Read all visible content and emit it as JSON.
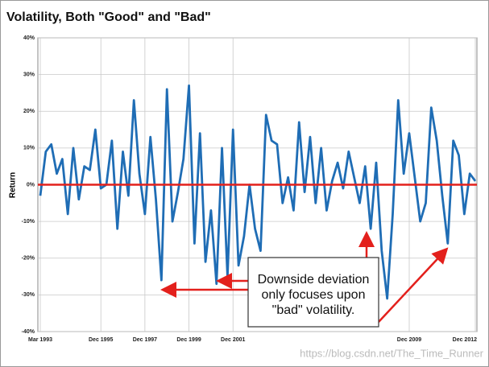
{
  "chart_data": {
    "type": "line",
    "title": "Volatility, Both \"Good\" and \"Bad\"",
    "y_label": "Return",
    "categories": [
      "Mar 1993",
      null,
      null,
      null,
      null,
      null,
      null,
      null,
      null,
      null,
      null,
      "Dec 1995",
      null,
      null,
      null,
      null,
      null,
      null,
      null,
      "Dec 1997",
      null,
      null,
      null,
      null,
      null,
      null,
      null,
      "Dec 1999",
      null,
      null,
      null,
      null,
      null,
      null,
      null,
      "Dec 2001",
      null,
      null,
      null,
      null,
      null,
      null,
      null,
      null,
      null,
      null,
      null,
      null,
      null,
      null,
      null,
      null,
      null,
      null,
      null,
      null,
      null,
      null,
      null,
      null,
      null,
      null,
      null,
      null,
      null,
      null,
      null,
      "Dec 2009",
      null,
      null,
      null,
      null,
      null,
      null,
      null,
      null,
      null,
      null,
      null,
      "Dec 2012"
    ],
    "series": [
      {
        "name": "Return",
        "color": "#1f6db5",
        "values": [
          -3,
          9,
          11,
          3,
          7,
          -8,
          10,
          -4,
          5,
          4,
          15,
          -1,
          0,
          12,
          -12,
          9,
          -3,
          23,
          3,
          -8,
          13,
          -4,
          -26,
          26,
          -10,
          -2,
          7,
          27,
          -16,
          14,
          -21,
          -7,
          -27,
          10,
          -25,
          15,
          -22,
          -14,
          0,
          -12,
          -18,
          19,
          12,
          11,
          -5,
          2,
          -7,
          17,
          -2,
          13,
          -5,
          10,
          -7,
          1,
          6,
          -1,
          9,
          2,
          -5,
          5,
          -12,
          6,
          -18,
          -31,
          -8,
          23,
          3,
          14,
          2,
          -10,
          -5,
          21,
          12,
          -3,
          -16,
          12,
          8,
          -8,
          3,
          1
        ]
      }
    ],
    "ylim": [
      -40,
      40
    ],
    "yticks": [
      {
        "value": -40,
        "label": "-40%"
      },
      {
        "value": -30,
        "label": "-30%"
      },
      {
        "value": -20,
        "label": "-20%"
      },
      {
        "value": -10,
        "label": "-10%"
      },
      {
        "value": 0,
        "label": "0%"
      },
      {
        "value": 10,
        "label": "10%"
      },
      {
        "value": 20,
        "label": "20%"
      },
      {
        "value": 30,
        "label": "30%"
      },
      {
        "value": 40,
        "label": "40%"
      }
    ],
    "grid": true,
    "zero_line_color": "#e3201c",
    "annotation": "Downside deviation only focuses upon \"bad\" volatility.",
    "watermark": "https://blog.csdn.net/The_Time_Runner"
  }
}
